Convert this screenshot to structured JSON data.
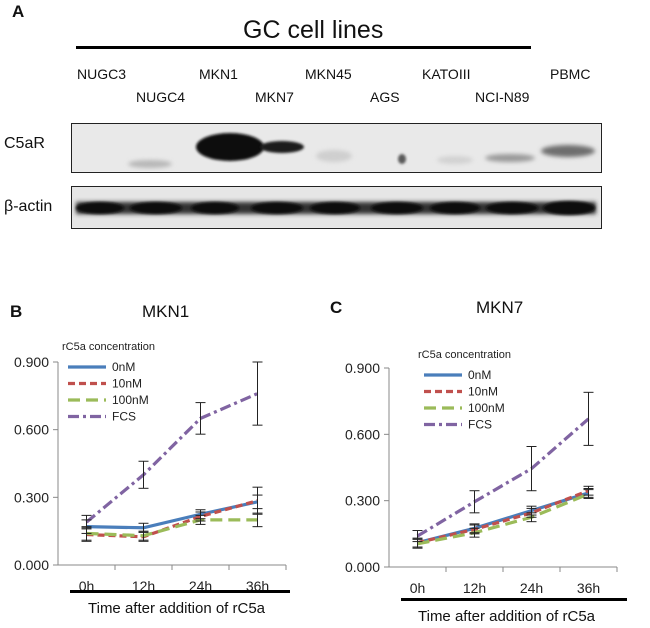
{
  "panel_a": {
    "letter": "A",
    "title": "GC cell lines",
    "lanes": [
      "NUGC3",
      "NUGC4",
      "MKN1",
      "MKN7",
      "MKN45",
      "AGS",
      "KATOIII",
      "NCI-N89",
      "PBMC"
    ],
    "blots": [
      "C5aR",
      "β-actin"
    ]
  },
  "chart_data": [
    {
      "type": "line",
      "panel": "B",
      "title": "MKN1",
      "categories": [
        "0h",
        "12h",
        "24h",
        "36h"
      ],
      "ylim": [
        0,
        0.9
      ],
      "yticks": [
        "0.000",
        "0.300",
        "0.600",
        "0.900"
      ],
      "xlabel": "Time after addition of rC5a",
      "legend_title": "rC5a concentration",
      "series": [
        {
          "name": "0nM",
          "values": [
            0.17,
            0.165,
            0.225,
            0.28
          ],
          "errors": [
            0.03,
            0.02,
            0.02,
            0.03
          ],
          "color": "#4a7ebb",
          "dash": "solid"
        },
        {
          "name": "10nM",
          "values": [
            0.135,
            0.125,
            0.215,
            0.285
          ],
          "errors": [
            0.03,
            0.02,
            0.02,
            0.06
          ],
          "color": "#c0504d",
          "dash": "dash"
        },
        {
          "name": "100nM",
          "values": [
            0.14,
            0.13,
            0.2,
            0.2
          ],
          "errors": [
            0.03,
            0.02,
            0.02,
            0.03
          ],
          "color": "#9bbb59",
          "dash": "longdash"
        },
        {
          "name": "FCS",
          "values": [
            0.19,
            0.4,
            0.65,
            0.76
          ],
          "errors": [
            0.03,
            0.06,
            0.07,
            0.14
          ],
          "color": "#8064a2",
          "dash": "dashdot"
        }
      ]
    },
    {
      "type": "line",
      "panel": "C",
      "title": "MKN7",
      "categories": [
        "0h",
        "12h",
        "24h",
        "36h"
      ],
      "ylim": [
        0,
        0.9
      ],
      "yticks": [
        "0.000",
        "0.300",
        "0.600",
        "0.900"
      ],
      "xlabel": "Time after addition of rC5a",
      "legend_title": "rC5a concentration",
      "series": [
        {
          "name": "0nM",
          "values": [
            0.11,
            0.175,
            0.255,
            0.335
          ],
          "errors": [
            0.02,
            0.02,
            0.02,
            0.02
          ],
          "color": "#4a7ebb",
          "dash": "solid"
        },
        {
          "name": "10nM",
          "values": [
            0.11,
            0.17,
            0.245,
            0.345
          ],
          "errors": [
            0.02,
            0.02,
            0.02,
            0.02
          ],
          "color": "#c0504d",
          "dash": "dash"
        },
        {
          "name": "100nM",
          "values": [
            0.105,
            0.155,
            0.225,
            0.33
          ],
          "errors": [
            0.02,
            0.02,
            0.02,
            0.02
          ],
          "color": "#9bbb59",
          "dash": "longdash"
        },
        {
          "name": "FCS",
          "values": [
            0.14,
            0.295,
            0.445,
            0.67
          ],
          "errors": [
            0.025,
            0.05,
            0.1,
            0.12
          ],
          "color": "#8064a2",
          "dash": "dashdot"
        }
      ]
    }
  ]
}
